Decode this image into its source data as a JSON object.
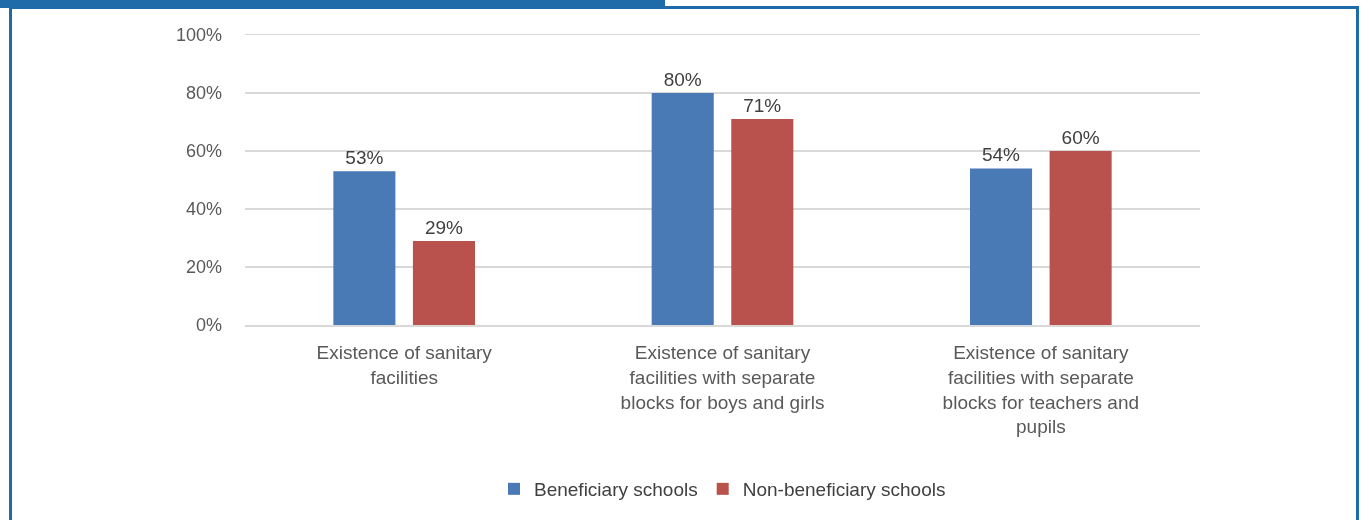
{
  "chart_data": {
    "type": "bar",
    "categories": [
      "Existence of sanitary facilities",
      "Existence of sanitary facilities with separate blocks for boys and girls",
      "Existence of sanitary facilities with separate blocks for teachers and pupils"
    ],
    "series": [
      {
        "name": "Beneficiary schools",
        "color": "#4a7ab5",
        "values": [
          53,
          80,
          54
        ],
        "value_labels": [
          "53%",
          "80%",
          "54%"
        ]
      },
      {
        "name": "Non-beneficiary schools",
        "color": "#b9514c",
        "values": [
          29,
          71,
          60
        ],
        "value_labels": [
          "29%",
          "71%",
          "60%"
        ]
      }
    ],
    "ylim": [
      0,
      100
    ],
    "yticks": [
      {
        "value": 0,
        "label": "0%"
      },
      {
        "value": 20,
        "label": "20%"
      },
      {
        "value": 40,
        "label": "40%"
      },
      {
        "value": 60,
        "label": "60%"
      },
      {
        "value": 80,
        "label": "80%"
      },
      {
        "value": 100,
        "label": "100%"
      }
    ],
    "grid": true,
    "legend": "bottom"
  }
}
